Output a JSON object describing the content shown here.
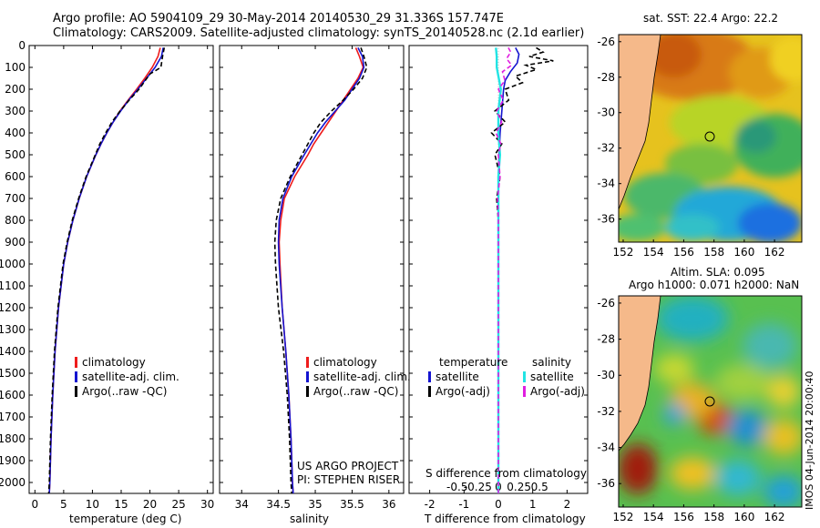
{
  "title_line1": "Argo profile: AO 5904109_29 30-May-2014 20140530_29 31.336S 157.747E",
  "title_line2": "Climatology: CARS2009. Satellite-adjusted climatology: synTS_20140528.nc (2.1d earlier)",
  "project_line1": "US ARGO PROJECT",
  "project_line2": "PI: STEPHEN RISER",
  "watermark": "IMOS 04-Jun-2014 20:00:40",
  "colors": {
    "climatology": "#ee1c1c",
    "satellite": "#1414d0",
    "argo": "#000000",
    "sal_satellite": "#22e4e4",
    "sal_argo": "#e01ee0",
    "land": "#f5b98a"
  },
  "chart_data": [
    {
      "type": "line",
      "name": "temperature-profile",
      "xlabel": "temperature (deg C)",
      "ylabel": "",
      "xlim": [
        -1,
        31
      ],
      "ylim": [
        2050,
        0
      ],
      "xticks": [
        0,
        5,
        10,
        15,
        20,
        25,
        30
      ],
      "yticks": [
        0,
        100,
        200,
        300,
        400,
        500,
        600,
        700,
        800,
        900,
        1000,
        1100,
        1200,
        1300,
        1400,
        1500,
        1600,
        1700,
        1800,
        1900,
        2000
      ],
      "legend": [
        "climatology",
        "satellite-adj. clim.",
        "Argo(..raw -QC)"
      ],
      "series": [
        {
          "name": "climatology",
          "y": [
            10,
            50,
            100,
            150,
            200,
            250,
            300,
            350,
            400,
            450,
            500,
            600,
            700,
            800,
            900,
            1000,
            1200,
            1400,
            1600,
            1800,
            2000,
            2050
          ],
          "x": [
            21.8,
            21.4,
            20.4,
            19.1,
            17.7,
            16.2,
            14.8,
            13.6,
            12.5,
            11.5,
            10.6,
            9.0,
            7.7,
            6.6,
            5.7,
            5.0,
            4.1,
            3.5,
            3.1,
            2.8,
            2.6,
            2.5
          ]
        },
        {
          "name": "satellite",
          "y": [
            10,
            50,
            100,
            150,
            200,
            250,
            300,
            350,
            400,
            450,
            500,
            600,
            700,
            800,
            900,
            1000,
            1200,
            1400,
            1600,
            1800,
            2000,
            2050
          ],
          "x": [
            22.3,
            22.0,
            20.9,
            19.4,
            17.9,
            16.3,
            14.9,
            13.6,
            12.5,
            11.5,
            10.6,
            9.0,
            7.7,
            6.6,
            5.7,
            5.0,
            4.1,
            3.5,
            3.1,
            2.8,
            2.6,
            2.5
          ]
        },
        {
          "name": "argo",
          "y": [
            10,
            50,
            100,
            130,
            200,
            250,
            300,
            350,
            400,
            450,
            500,
            600,
            700,
            800,
            900,
            1000,
            1200,
            1400,
            1600,
            1800,
            2000,
            2050
          ],
          "x": [
            22.5,
            22.2,
            21.9,
            20.0,
            18.1,
            16.4,
            14.8,
            13.4,
            12.3,
            11.3,
            10.5,
            8.9,
            7.6,
            6.5,
            5.6,
            4.9,
            4.0,
            3.4,
            3.0,
            2.7,
            2.5,
            2.4
          ]
        }
      ]
    },
    {
      "type": "line",
      "name": "salinity-profile",
      "xlabel": "salinity",
      "xlim": [
        33.7,
        36.2
      ],
      "ylim": [
        2050,
        0
      ],
      "xticks": [
        34,
        34.5,
        35,
        35.5,
        36
      ],
      "legend": [
        "climatology",
        "satellite-adj. clim.",
        "Argo(..raw -QC)"
      ],
      "series": [
        {
          "name": "climatology",
          "y": [
            10,
            50,
            100,
            150,
            200,
            250,
            300,
            350,
            400,
            450,
            500,
            600,
            700,
            800,
            900,
            1000,
            1200,
            1400,
            1600,
            1800,
            2000,
            2050
          ],
          "x": [
            35.55,
            35.6,
            35.65,
            35.58,
            35.48,
            35.38,
            35.28,
            35.18,
            35.08,
            34.98,
            34.9,
            34.72,
            34.58,
            34.53,
            34.51,
            34.52,
            34.55,
            34.6,
            34.64,
            34.67,
            34.69,
            34.7
          ]
        },
        {
          "name": "satellite",
          "y": [
            10,
            50,
            100,
            150,
            200,
            250,
            300,
            350,
            400,
            450,
            500,
            600,
            700,
            800,
            900,
            1000,
            1200,
            1400,
            1600,
            1800,
            2000,
            2050
          ],
          "x": [
            35.58,
            35.64,
            35.66,
            35.6,
            35.5,
            35.4,
            35.27,
            35.14,
            35.03,
            34.94,
            34.85,
            34.68,
            34.56,
            34.51,
            34.5,
            34.51,
            34.55,
            34.6,
            34.64,
            34.67,
            34.69,
            34.7
          ]
        },
        {
          "name": "argo",
          "y": [
            10,
            50,
            100,
            150,
            200,
            250,
            300,
            350,
            400,
            450,
            500,
            600,
            700,
            800,
            900,
            1000,
            1200,
            1400,
            1600,
            1800,
            2000,
            2050
          ],
          "x": [
            35.62,
            35.66,
            35.7,
            35.64,
            35.52,
            35.38,
            35.22,
            35.08,
            34.98,
            34.9,
            34.82,
            34.66,
            34.53,
            34.47,
            34.45,
            34.46,
            34.5,
            34.57,
            34.62,
            34.65,
            34.67,
            34.68
          ]
        }
      ]
    },
    {
      "type": "line",
      "name": "difference-profile",
      "xlabel": "T difference from climatology",
      "xlabel_top": "S difference from climatology",
      "t_xlim": [
        -2.6,
        2.6
      ],
      "t_xticks": [
        -2,
        -1,
        0,
        1,
        2
      ],
      "s_xticks": [
        -0.5,
        -0.25,
        0,
        0.25,
        0.5
      ],
      "s_ticklabels": [
        "-0.5",
        "-0.25",
        "0",
        "0.25",
        "0.5"
      ],
      "legend_left_header": "temperature",
      "legend_right_header": "salinity",
      "legend": [
        "satellite",
        "Argo(-adj)",
        "satellite",
        "Argo(-adj)"
      ],
      "series": [
        {
          "name": "T satellite",
          "y": [
            10,
            40,
            80,
            120,
            160,
            200,
            300,
            400,
            500,
            600,
            700,
            800,
            1000,
            1500,
            2050
          ],
          "x": [
            0.5,
            0.6,
            0.55,
            0.35,
            0.2,
            0.15,
            0.1,
            0.05,
            0.02,
            0,
            0,
            0,
            0,
            0,
            0
          ]
        },
        {
          "name": "T argo",
          "y": [
            10,
            30,
            50,
            70,
            90,
            110,
            140,
            170,
            200,
            250,
            300,
            350,
            400,
            450,
            500,
            600,
            700,
            800,
            1000,
            1500,
            2050
          ],
          "x": [
            1.1,
            1.3,
            0.9,
            1.6,
            0.8,
            1.1,
            0.5,
            0.7,
            0.2,
            0.3,
            -0.1,
            0.2,
            -0.2,
            0.1,
            -0.1,
            0.05,
            -0.05,
            0,
            0,
            0,
            0
          ]
        },
        {
          "name": "S satellite",
          "y": [
            10,
            50,
            100,
            200,
            300,
            400,
            500,
            600,
            700,
            800,
            900,
            1000,
            1500,
            2050
          ],
          "x": [
            -0.03,
            -0.02,
            -0.02,
            0.03,
            0.0,
            0.0,
            0.02,
            0.0,
            0.0,
            0.0,
            0.0,
            0.0,
            0.0,
            0.0
          ]
        },
        {
          "name": "S argo",
          "y": [
            10,
            30,
            60,
            90,
            120,
            160,
            200,
            250,
            300,
            350,
            400,
            450,
            500,
            600,
            700,
            800,
            1000,
            1500,
            2050
          ],
          "x": [
            0.12,
            0.15,
            0.1,
            0.16,
            0.05,
            0.08,
            0.0,
            0.06,
            -0.02,
            0.04,
            -0.03,
            0.03,
            0.0,
            0.02,
            -0.01,
            0.0,
            0.0,
            0.0,
            0.0
          ]
        }
      ]
    },
    {
      "type": "heatmap",
      "name": "sst-map",
      "title": "sat. SST: 22.4  Argo: 22.2",
      "xticks": [
        152,
        154,
        156,
        158,
        160,
        162
      ],
      "yticks": [
        -26,
        -28,
        -30,
        -32,
        -34,
        -36
      ],
      "xlim": [
        151.7,
        163.8
      ],
      "ylim": [
        -37.3,
        -25.6
      ],
      "marker": {
        "lon": 157.75,
        "lat": -31.34
      }
    },
    {
      "type": "heatmap",
      "name": "sla-map",
      "title": "Altim. SLA: 0.095",
      "subtitle": "Argo h1000: 0.071  h2000: NaN",
      "xticks": [
        152,
        154,
        156,
        158,
        160,
        162
      ],
      "yticks": [
        -26,
        -28,
        -30,
        -32,
        -34,
        -36
      ],
      "xlim": [
        151.7,
        163.8
      ],
      "ylim": [
        -37.3,
        -25.6
      ],
      "marker": {
        "lon": 157.75,
        "lat": -31.34
      }
    }
  ]
}
